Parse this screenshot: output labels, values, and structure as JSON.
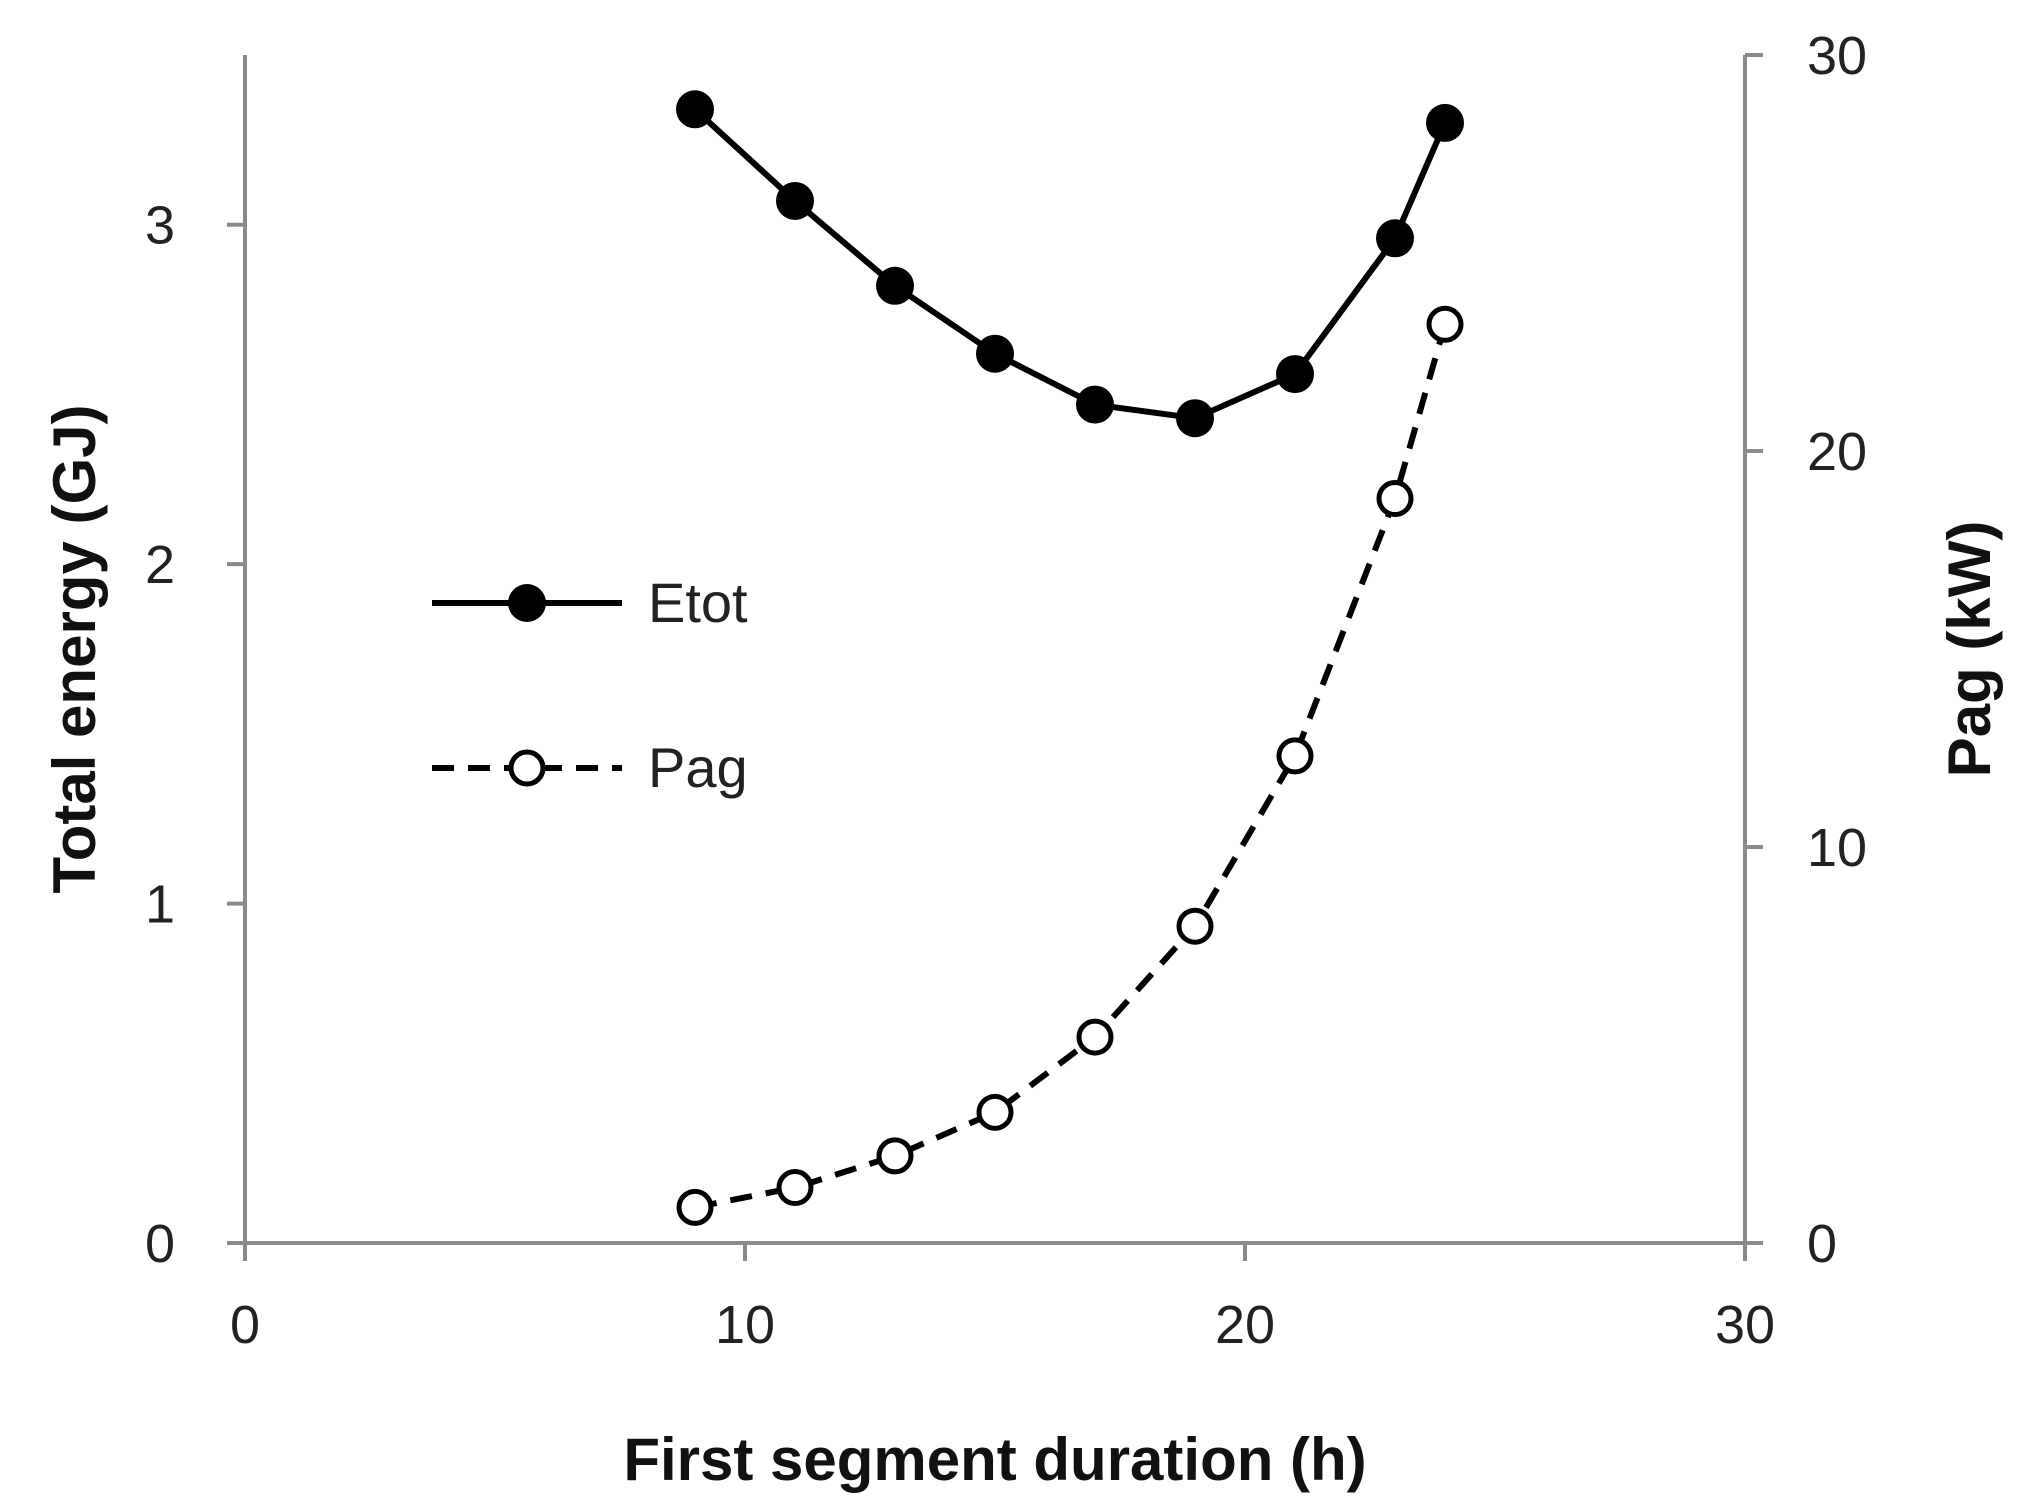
{
  "chart_data": {
    "type": "line",
    "title": "",
    "xlabel": "First segment duration (h)",
    "ylabel": "Total energy (GJ)",
    "y2label": "Pag (kW)",
    "xlim": [
      0,
      30
    ],
    "ylim": [
      0,
      3.5
    ],
    "y2lim": [
      0,
      30
    ],
    "xticks": [
      "0",
      "10",
      "20",
      "30"
    ],
    "yticks": [
      "0",
      "1",
      "2",
      "3"
    ],
    "y2ticks": [
      "0",
      "10",
      "20",
      "30"
    ],
    "grid": false,
    "legend_position": "center-left",
    "x": [
      9,
      11,
      13,
      15,
      17,
      19,
      21,
      23,
      24
    ],
    "series": [
      {
        "name": "Etot",
        "axis": "left",
        "style": "solid-filled",
        "color": "#000000",
        "values": [
          3.34,
          3.07,
          2.82,
          2.62,
          2.47,
          2.43,
          2.56,
          2.96,
          3.3
        ]
      },
      {
        "name": "Pag",
        "axis": "right",
        "style": "dashed-open",
        "color": "#000000",
        "values": [
          0.9,
          1.4,
          2.2,
          3.3,
          5.2,
          8.0,
          12.3,
          18.8,
          23.2
        ]
      }
    ]
  }
}
